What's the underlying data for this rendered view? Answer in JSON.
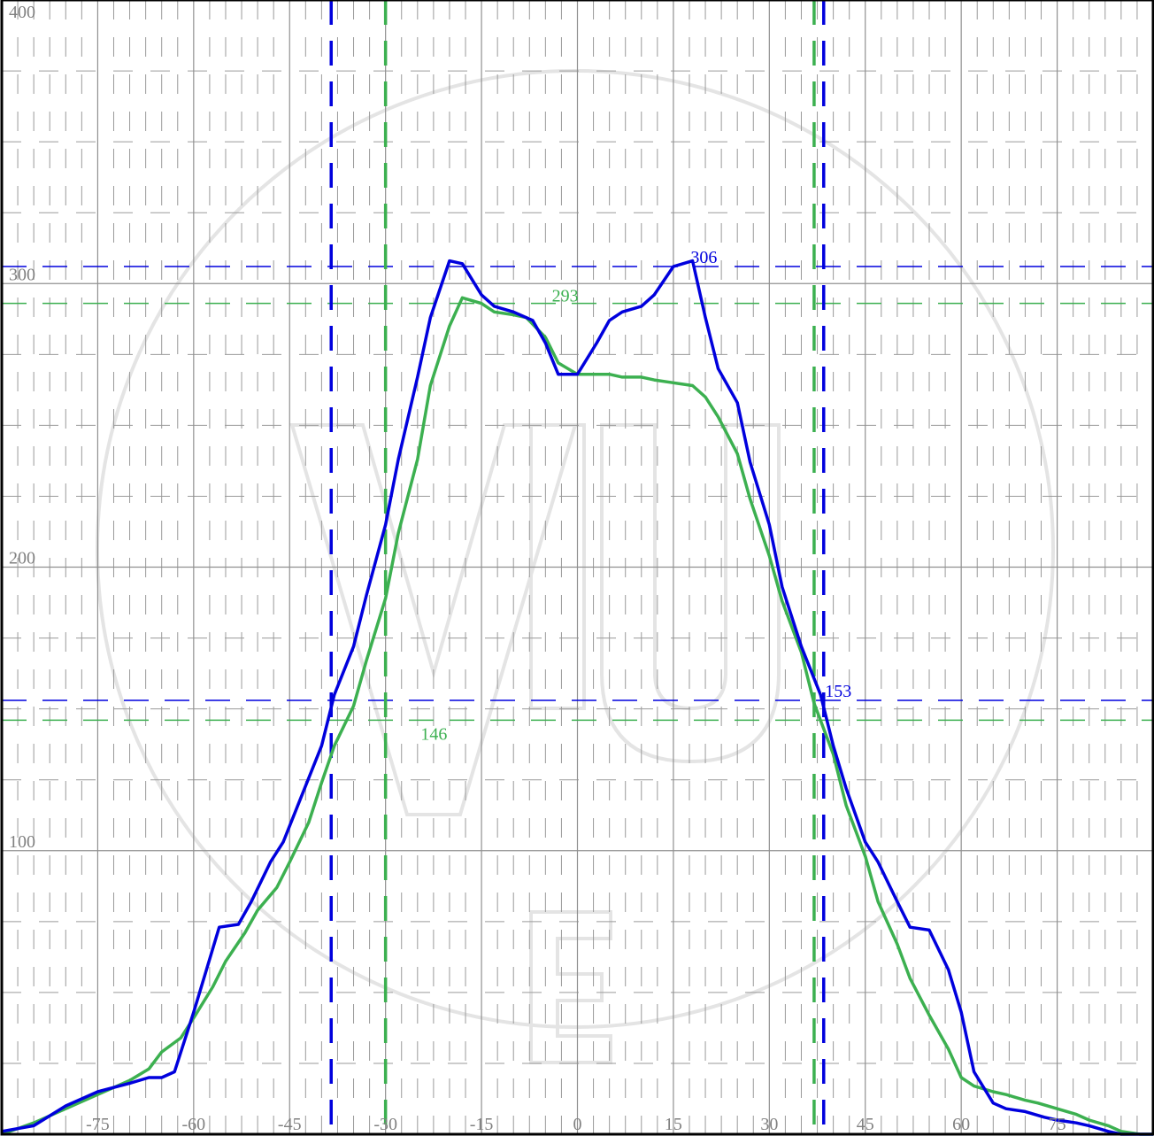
{
  "chart_data": {
    "type": "line",
    "xlim": [
      -90,
      90
    ],
    "ylim": [
      0,
      400
    ],
    "x_ticks": [
      -75,
      -60,
      -45,
      -30,
      -15,
      0,
      15,
      30,
      45,
      60,
      75
    ],
    "y_ticks": [
      100,
      200,
      300,
      400
    ],
    "grid": true,
    "series": [
      {
        "color": "#0000dd",
        "x": [
          -90,
          -85,
          -80,
          -75,
          -70,
          -67,
          -65,
          -63,
          -60,
          -58,
          -56,
          -53,
          -51,
          -48,
          -46,
          -43,
          -40,
          -38,
          -35,
          -33,
          -30,
          -28,
          -25,
          -23,
          -20,
          -18,
          -15,
          -13,
          -10,
          -7,
          -5,
          -3,
          0,
          3,
          5,
          7,
          10,
          12,
          15,
          18,
          20,
          22,
          25,
          27,
          30,
          32,
          35,
          38,
          40,
          42,
          45,
          47,
          50,
          52,
          55,
          58,
          60,
          62,
          65,
          67,
          70,
          73,
          75,
          78,
          80,
          83,
          85,
          88,
          90
        ],
        "y": [
          1,
          3,
          10,
          15,
          18,
          20,
          20,
          22,
          43,
          58,
          73,
          74,
          82,
          96,
          103,
          120,
          137,
          155,
          172,
          190,
          215,
          238,
          267,
          288,
          308,
          307,
          296,
          292,
          290,
          287,
          279,
          268,
          268,
          279,
          287,
          290,
          292,
          296,
          306,
          308,
          288,
          270,
          258,
          237,
          215,
          193,
          172,
          155,
          137,
          122,
          103,
          96,
          82,
          73,
          72,
          58,
          43,
          22,
          11,
          9,
          8,
          6,
          5,
          4,
          3,
          1,
          0,
          0,
          0
        ],
        "peak_label": "306",
        "half_label": "153"
      },
      {
        "color": "#3cb050",
        "x": [
          -90,
          -85,
          -80,
          -75,
          -70,
          -67,
          -65,
          -62,
          -60,
          -57,
          -55,
          -52,
          -50,
          -47,
          -45,
          -42,
          -40,
          -38,
          -35,
          -33,
          -30,
          -28,
          -25,
          -23,
          -20,
          -18,
          -15,
          -13,
          -10,
          -8,
          -5,
          -3,
          0,
          2,
          5,
          7,
          10,
          12,
          15,
          18,
          20,
          22,
          25,
          27,
          30,
          32,
          35,
          37,
          40,
          42,
          45,
          47,
          50,
          52,
          55,
          58,
          60,
          62,
          65,
          67,
          70,
          72,
          75,
          78,
          80,
          83,
          85,
          88,
          90
        ],
        "y": [
          0,
          4,
          9,
          14,
          19,
          23,
          29,
          34,
          41,
          52,
          61,
          71,
          79,
          87,
          96,
          110,
          124,
          137,
          151,
          167,
          189,
          212,
          238,
          264,
          285,
          295,
          293,
          290,
          289,
          288,
          281,
          272,
          268,
          268,
          268,
          267,
          267,
          266,
          265,
          264,
          260,
          253,
          240,
          224,
          204,
          188,
          170,
          152,
          134,
          116,
          98,
          82,
          67,
          55,
          42,
          30,
          20,
          17,
          15,
          14,
          12,
          11,
          9,
          7,
          5,
          3,
          1,
          0,
          0
        ],
        "peak_label": "293",
        "half_label": "146"
      }
    ],
    "markers": {
      "blue_vlines_x": [
        -38.5,
        38.5
      ],
      "green_vlines_x": [
        -30,
        37
      ],
      "blue_hlines_y": [
        306,
        153
      ],
      "green_hlines_y": [
        293,
        146
      ]
    }
  }
}
